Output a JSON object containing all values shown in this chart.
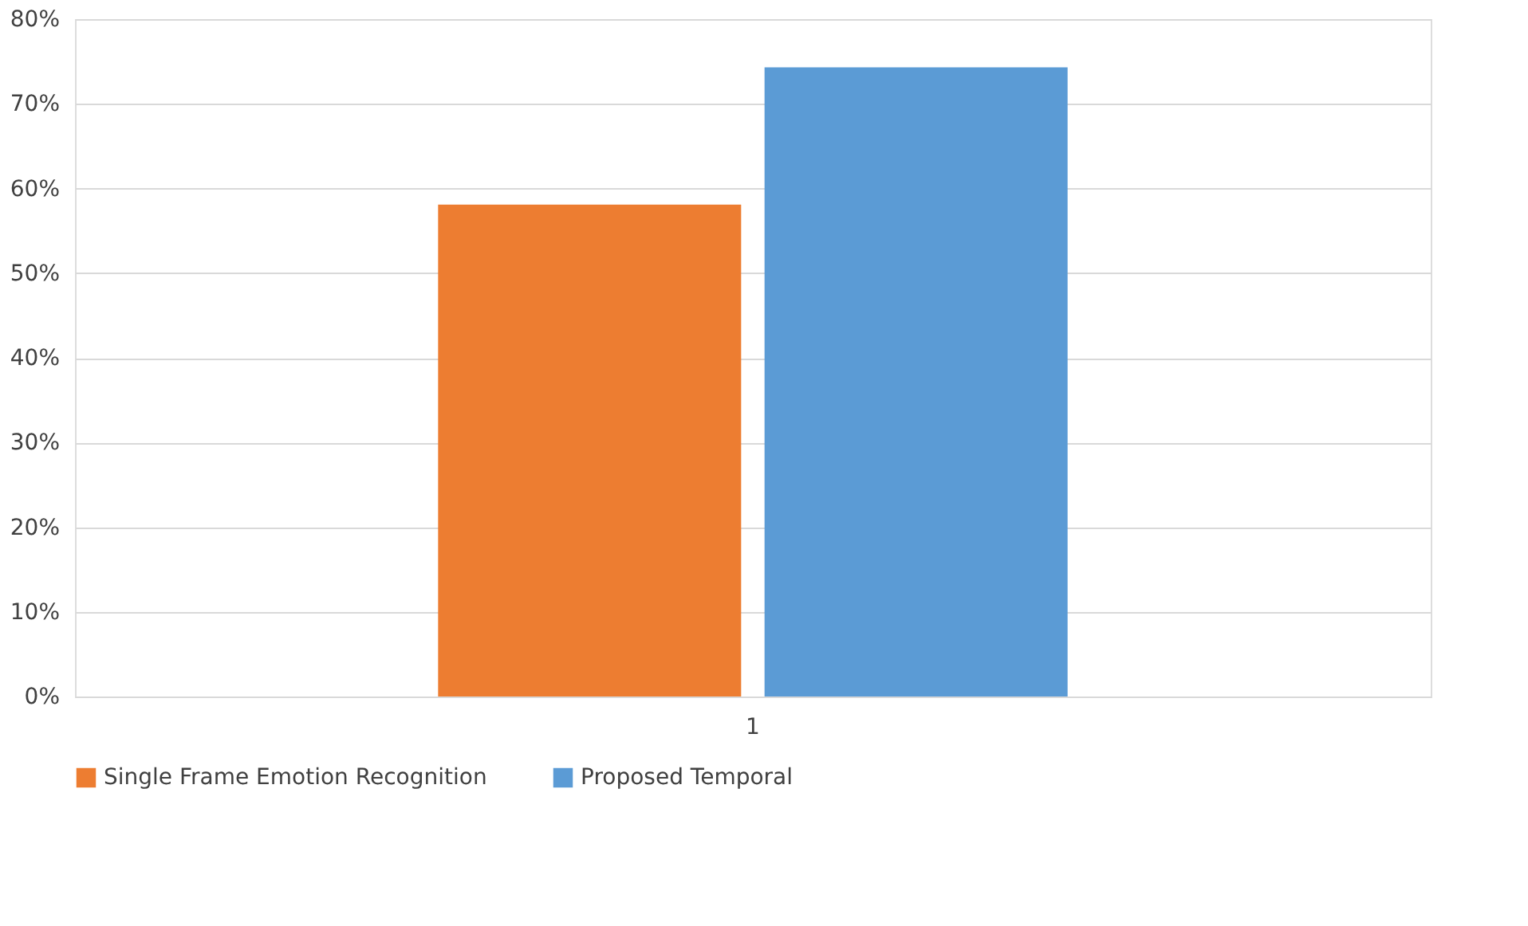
{
  "chart_data": {
    "type": "bar",
    "categories": [
      "1"
    ],
    "series": [
      {
        "name": "Single Frame Emotion Recognition",
        "color": "#ed7d31",
        "values": [
          58.1
        ]
      },
      {
        "name": "Proposed Temporal",
        "color": "#5b9bd5",
        "values": [
          74.3
        ]
      }
    ],
    "ylim": [
      0,
      80
    ],
    "yticks": [
      {
        "value": 0,
        "label": "0%"
      },
      {
        "value": 10,
        "label": "10%"
      },
      {
        "value": 20,
        "label": "20%"
      },
      {
        "value": 30,
        "label": "30%"
      },
      {
        "value": 40,
        "label": "40%"
      },
      {
        "value": 50,
        "label": "50%"
      },
      {
        "value": 60,
        "label": "60%"
      },
      {
        "value": 70,
        "label": "70%"
      },
      {
        "value": 80,
        "label": "80%"
      }
    ],
    "grid": "y",
    "legend": "bottom"
  }
}
